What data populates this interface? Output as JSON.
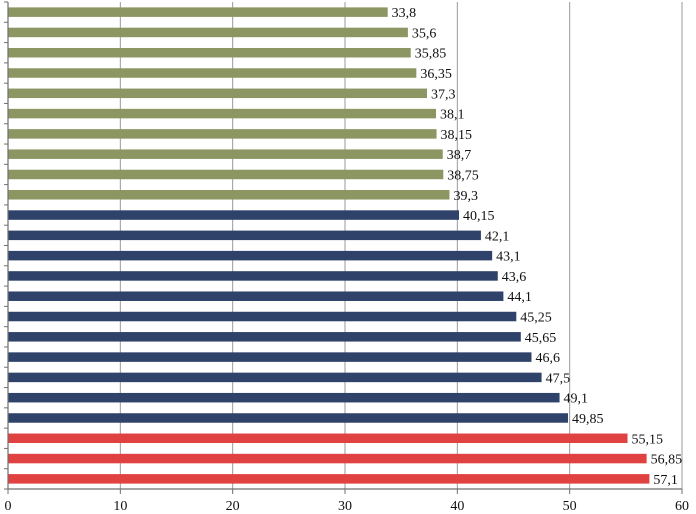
{
  "chart_data": {
    "type": "bar",
    "orientation": "horizontal",
    "title": "",
    "xlabel": "",
    "ylabel": "",
    "xlim": [
      0,
      60
    ],
    "x_ticks": [
      "0",
      "10",
      "20",
      "30",
      "40",
      "50",
      "60"
    ],
    "grid": true,
    "legend": "none",
    "colors": {
      "green": "#8b9662",
      "navy": "#2f4269",
      "red": "#e04141"
    },
    "bars": [
      {
        "value": 33.8,
        "label": "33,8",
        "color": "green"
      },
      {
        "value": 35.6,
        "label": "35,6",
        "color": "green"
      },
      {
        "value": 35.85,
        "label": "35,85",
        "color": "green"
      },
      {
        "value": 36.35,
        "label": "36,35",
        "color": "green"
      },
      {
        "value": 37.3,
        "label": "37,3",
        "color": "green"
      },
      {
        "value": 38.1,
        "label": "38,1",
        "color": "green"
      },
      {
        "value": 38.15,
        "label": "38,15",
        "color": "green"
      },
      {
        "value": 38.7,
        "label": "38,7",
        "color": "green"
      },
      {
        "value": 38.75,
        "label": "38,75",
        "color": "green"
      },
      {
        "value": 39.3,
        "label": "39,3",
        "color": "green"
      },
      {
        "value": 40.15,
        "label": "40,15",
        "color": "navy"
      },
      {
        "value": 42.1,
        "label": "42,1",
        "color": "navy"
      },
      {
        "value": 43.1,
        "label": "43,1",
        "color": "navy"
      },
      {
        "value": 43.6,
        "label": "43,6",
        "color": "navy"
      },
      {
        "value": 44.1,
        "label": "44,1",
        "color": "navy"
      },
      {
        "value": 45.25,
        "label": "45,25",
        "color": "navy"
      },
      {
        "value": 45.65,
        "label": "45,65",
        "color": "navy"
      },
      {
        "value": 46.6,
        "label": "46,6",
        "color": "navy"
      },
      {
        "value": 47.5,
        "label": "47,5",
        "color": "navy"
      },
      {
        "value": 49.1,
        "label": "49,1",
        "color": "navy"
      },
      {
        "value": 49.85,
        "label": "49,85",
        "color": "navy"
      },
      {
        "value": 55.15,
        "label": "55,15",
        "color": "red"
      },
      {
        "value": 56.85,
        "label": "56,85",
        "color": "red"
      },
      {
        "value": 57.1,
        "label": "57,1",
        "color": "red"
      }
    ]
  }
}
